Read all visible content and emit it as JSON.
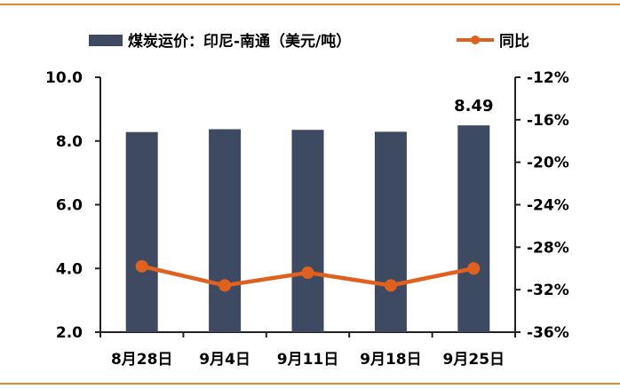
{
  "chart_data": {
    "type": "bar+line",
    "categories": [
      "8月28日",
      "9月4日",
      "9月11日",
      "9月18日",
      "9月25日"
    ],
    "series": [
      {
        "name": "煤炭运价：印尼-南通（美元/吨）",
        "type": "bar",
        "axis": "left",
        "values": [
          8.28,
          8.37,
          8.35,
          8.29,
          8.49
        ]
      },
      {
        "name": "同比",
        "type": "line",
        "axis": "right",
        "values": [
          -29.8,
          -31.6,
          -30.4,
          -31.6,
          -30.0
        ]
      }
    ],
    "data_labels": [
      {
        "category": "9月25日",
        "text": "8.49"
      }
    ],
    "y_left": {
      "min": 2.0,
      "max": 10.0,
      "ticks": [
        "2.0",
        "4.0",
        "6.0",
        "8.0",
        "10.0"
      ]
    },
    "y_right": {
      "min": -36,
      "max": -12,
      "ticks": [
        "-12%",
        "-16%",
        "-20%",
        "-24%",
        "-28%",
        "-32%",
        "-36%"
      ]
    },
    "legend_position": "top",
    "grid": false,
    "colors": {
      "bar": "#3e4a62",
      "line": "#e0601e",
      "rule": "#e0892f"
    }
  }
}
